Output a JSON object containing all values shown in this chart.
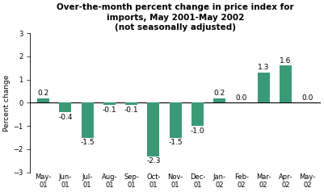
{
  "categories": [
    "May-\n01",
    "Jun-\n01",
    "Jul-\n01",
    "Aug-\n01",
    "Sep-\n01",
    "Oct-\n01",
    "Nov-\n01",
    "Dec-\n01",
    "Jan-\n02",
    "Feb-\n02",
    "Mar-\n02",
    "Apr-\n02",
    "May-\n02"
  ],
  "values": [
    0.2,
    -0.4,
    -1.5,
    -0.1,
    -0.1,
    -2.3,
    -1.5,
    -1.0,
    0.2,
    0.0,
    1.3,
    1.6,
    0.0
  ],
  "bar_color": "#3a9a78",
  "title_line1": "Over-the-month percent change in price index for",
  "title_line2": "imports, May 2001-May 2002",
  "title_line3": "(not seasonally adjusted)",
  "ylabel": "Percent change",
  "ylim": [
    -3,
    3
  ],
  "yticks": [
    -3,
    -2,
    -1,
    0,
    1,
    2,
    3
  ],
  "background_color": "#ffffff",
  "label_fontsize": 6.5,
  "title_fontsize": 7.5,
  "ylabel_fontsize": 6.5,
  "tick_fontsize": 6.0
}
